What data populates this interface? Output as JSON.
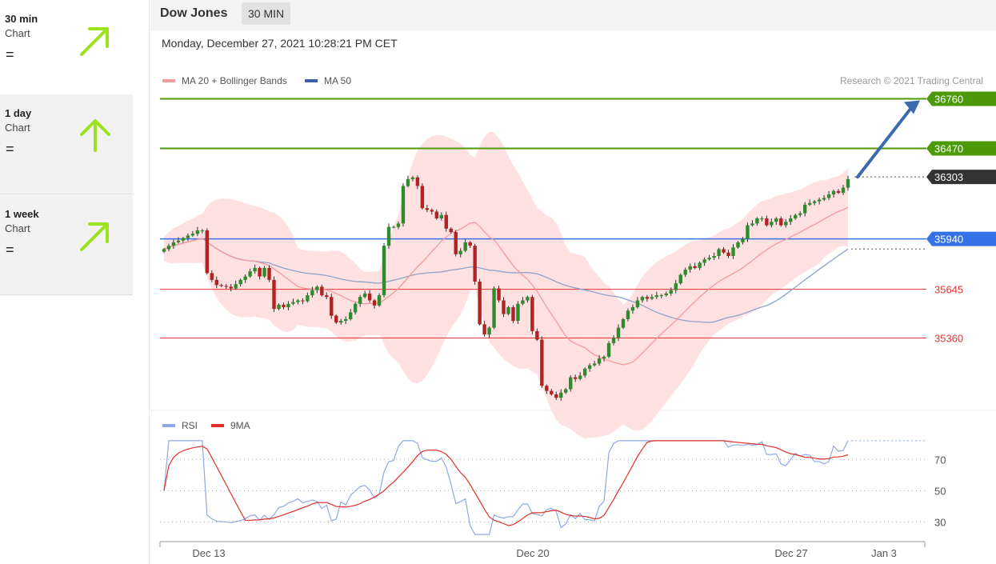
{
  "sidebar": {
    "items": [
      {
        "label": "30 min",
        "sub": "Chart",
        "sign": "=",
        "trend": "up-right"
      },
      {
        "label": "1 day",
        "sub": "Chart",
        "sign": "=",
        "trend": "up"
      },
      {
        "label": "1 week",
        "sub": "Chart",
        "sign": "=",
        "trend": "up-right"
      }
    ],
    "arrow_color": "#9be21f"
  },
  "header": {
    "title": "Dow Jones",
    "timeframe": "30 MIN"
  },
  "datetime": "Monday, December 27, 2021 10:28:21 PM CET",
  "research": "Research © 2021 Trading Central",
  "legend": {
    "ma20": "MA 20 + Bollinger Bands",
    "ma50": "MA 50",
    "rsi": "RSI",
    "ma9": "9MA"
  },
  "chart_data": {
    "type": "candlestick",
    "ylim": [
      34950,
      36800
    ],
    "last_price": 36303,
    "levels": [
      {
        "value": 36760,
        "label": "36760",
        "kind": "resistance",
        "color": "#4c9a0a"
      },
      {
        "value": 36470,
        "label": "36470",
        "kind": "resistance",
        "color": "#4c9a0a"
      },
      {
        "value": 35940,
        "label": "35940",
        "kind": "pivot",
        "color": "#3572ea"
      },
      {
        "value": 35645,
        "label": "35645",
        "kind": "support",
        "color": "#e23434"
      },
      {
        "value": 35360,
        "label": "35360",
        "kind": "support",
        "color": "#e23434"
      }
    ],
    "target": 36760,
    "closes": [
      35880,
      35900,
      35920,
      35930,
      35945,
      35960,
      35970,
      35990,
      35990,
      35740,
      35700,
      35670,
      35665,
      35660,
      35650,
      35675,
      35700,
      35720,
      35750,
      35770,
      35720,
      35770,
      35700,
      35530,
      35555,
      35540,
      35560,
      35570,
      35580,
      35575,
      35610,
      35640,
      35660,
      35610,
      35600,
      35490,
      35450,
      35460,
      35470,
      35510,
      35560,
      35600,
      35620,
      35580,
      35550,
      35610,
      35900,
      36010,
      36010,
      36030,
      36250,
      36290,
      36300,
      36250,
      36120,
      36110,
      36100,
      36060,
      36080,
      36000,
      35980,
      35850,
      35870,
      35920,
      35900,
      35690,
      35440,
      35380,
      35420,
      35650,
      35580,
      35500,
      35540,
      35460,
      35560,
      35580,
      35600,
      35400,
      35350,
      35080,
      35050,
      35030,
      35010,
      35040,
      35060,
      35130,
      35120,
      35140,
      35180,
      35200,
      35210,
      35240,
      35250,
      35330,
      35360,
      35420,
      35470,
      35520,
      35540,
      35580,
      35600,
      35590,
      35600,
      35610,
      35610,
      35620,
      35640,
      35680,
      35730,
      35760,
      35780,
      35770,
      35800,
      35820,
      35830,
      35840,
      35880,
      35860,
      35840,
      35890,
      35920,
      35940,
      36020,
      36030,
      36060,
      36060,
      36020,
      36040,
      36060,
      36020,
      36040,
      36060,
      36080,
      36090,
      36140,
      36150,
      36160,
      36170,
      36180,
      36200,
      36220,
      36210,
      36240,
      36290
    ],
    "rsi_ylim": [
      20,
      85
    ],
    "rsi_ticks": [
      70,
      50,
      30
    ],
    "x_labels": [
      {
        "label": "Dec 13"
      },
      {
        "label": "Dec 20"
      },
      {
        "label": "Dec 27"
      },
      {
        "label": "Jan 3"
      }
    ]
  },
  "colors": {
    "up": "#2e8b2e",
    "down": "#b22222",
    "ma20": "#f39a9a",
    "band": "#ffdede",
    "ma50": "#8aa3cc",
    "rsi": "#8fa8e6",
    "ma9": "#e0302a"
  }
}
